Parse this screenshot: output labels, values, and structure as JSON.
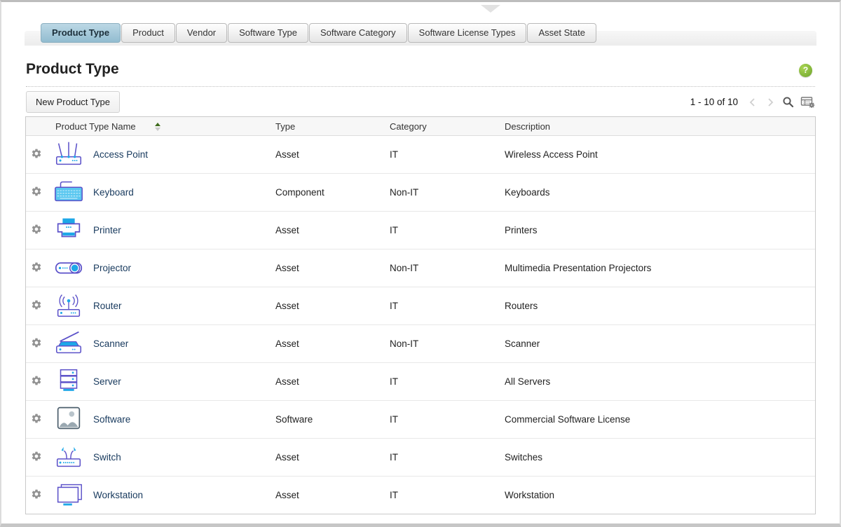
{
  "page": {
    "title": "Product Type"
  },
  "tabs": [
    {
      "label": "Product Type",
      "active": true
    },
    {
      "label": "Product",
      "active": false
    },
    {
      "label": "Vendor",
      "active": false
    },
    {
      "label": "Software Type",
      "active": false
    },
    {
      "label": "Software Category",
      "active": false
    },
    {
      "label": "Software License Types",
      "active": false
    },
    {
      "label": "Asset State",
      "active": false
    }
  ],
  "toolbar": {
    "new_button_label": "New Product Type",
    "pagination_text": "1 - 10 of 10",
    "help_label": "?"
  },
  "table": {
    "headers": {
      "name": "Product Type Name",
      "type": "Type",
      "category": "Category",
      "description": "Description"
    },
    "sort": {
      "column": "name",
      "direction": "asc"
    },
    "rows": [
      {
        "icon": "access-point",
        "name": "Access Point",
        "type": "Asset",
        "category": "IT",
        "description": "Wireless Access Point"
      },
      {
        "icon": "keyboard",
        "name": "Keyboard",
        "type": "Component",
        "category": "Non-IT",
        "description": "Keyboards"
      },
      {
        "icon": "printer",
        "name": "Printer",
        "type": "Asset",
        "category": "IT",
        "description": "Printers"
      },
      {
        "icon": "projector",
        "name": "Projector",
        "type": "Asset",
        "category": "Non-IT",
        "description": "Multimedia Presentation Projectors"
      },
      {
        "icon": "router",
        "name": "Router",
        "type": "Asset",
        "category": "IT",
        "description": "Routers"
      },
      {
        "icon": "scanner",
        "name": "Scanner",
        "type": "Asset",
        "category": "Non-IT",
        "description": "Scanner"
      },
      {
        "icon": "server",
        "name": "Server",
        "type": "Asset",
        "category": "IT",
        "description": "All Servers"
      },
      {
        "icon": "software",
        "name": "Software",
        "type": "Software",
        "category": "IT",
        "description": "Commercial Software License"
      },
      {
        "icon": "switch",
        "name": "Switch",
        "type": "Asset",
        "category": "IT",
        "description": "Switches"
      },
      {
        "icon": "workstation",
        "name": "Workstation",
        "type": "Asset",
        "category": "IT",
        "description": "Workstation"
      }
    ]
  },
  "colors": {
    "tab_active": "#a5c9da",
    "icon_outline": "#5b51c9",
    "icon_accent": "#1ea8e8",
    "help_green": "#76ab2f",
    "link_navy": "#17395d",
    "sort_green": "#3f6b1d"
  }
}
